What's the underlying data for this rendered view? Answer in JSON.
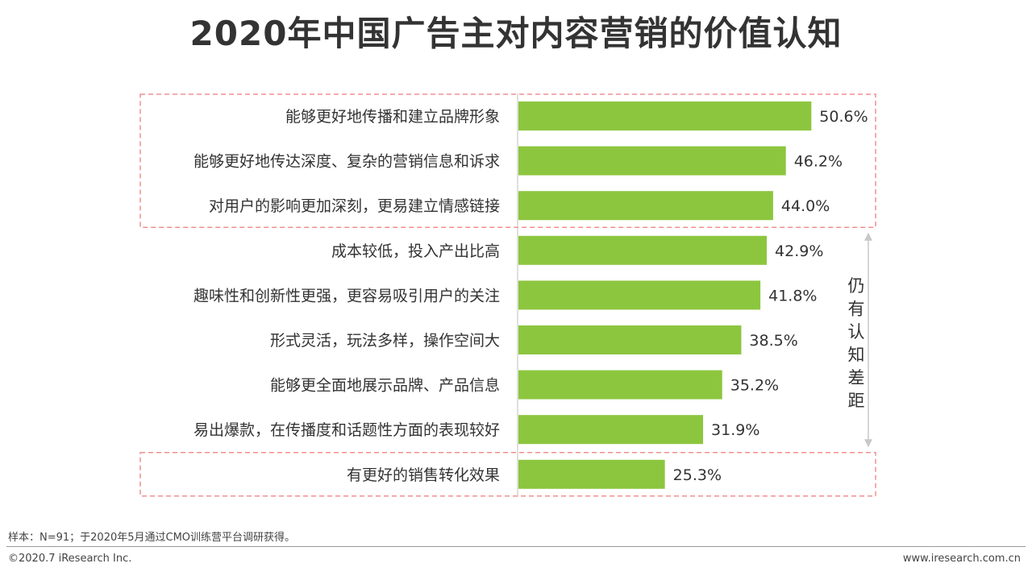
{
  "chart_data": {
    "type": "bar",
    "orientation": "horizontal",
    "title": "2020年中国广告主对内容营销的价值认知",
    "categories": [
      "能够更好地传播和建立品牌形象",
      "能够更好地传达深度、复杂的营销信息和诉求",
      "对用户的影响更加深刻，更易建立情感链接",
      "成本较低，投入产出比高",
      "趣味性和创新性更强，更容易吸引用户的关注",
      "形式灵活，玩法多样，操作空间大",
      "能够更全面地展示品牌、产品信息",
      "易出爆款，在传播度和话题性方面的表现较好",
      "有更好的销售转化效果"
    ],
    "values": [
      50.6,
      46.2,
      44.0,
      42.9,
      41.8,
      38.5,
      35.2,
      31.9,
      25.3
    ],
    "value_labels": [
      "50.6%",
      "46.2%",
      "44.0%",
      "42.9%",
      "41.8%",
      "38.5%",
      "35.2%",
      "31.9%",
      "25.3%"
    ],
    "xlim": [
      0,
      70
    ],
    "bar_color": "#8cc63f",
    "highlight_box_color": "#f28f8f",
    "annotation": "仍有认知差距"
  },
  "footer": {
    "note": "样本：N=91；于2020年5月通过CMO训练营平台调研获得。",
    "copyright": "©2020.7 iResearch Inc.",
    "url": "www.iresearch.com.cn"
  }
}
